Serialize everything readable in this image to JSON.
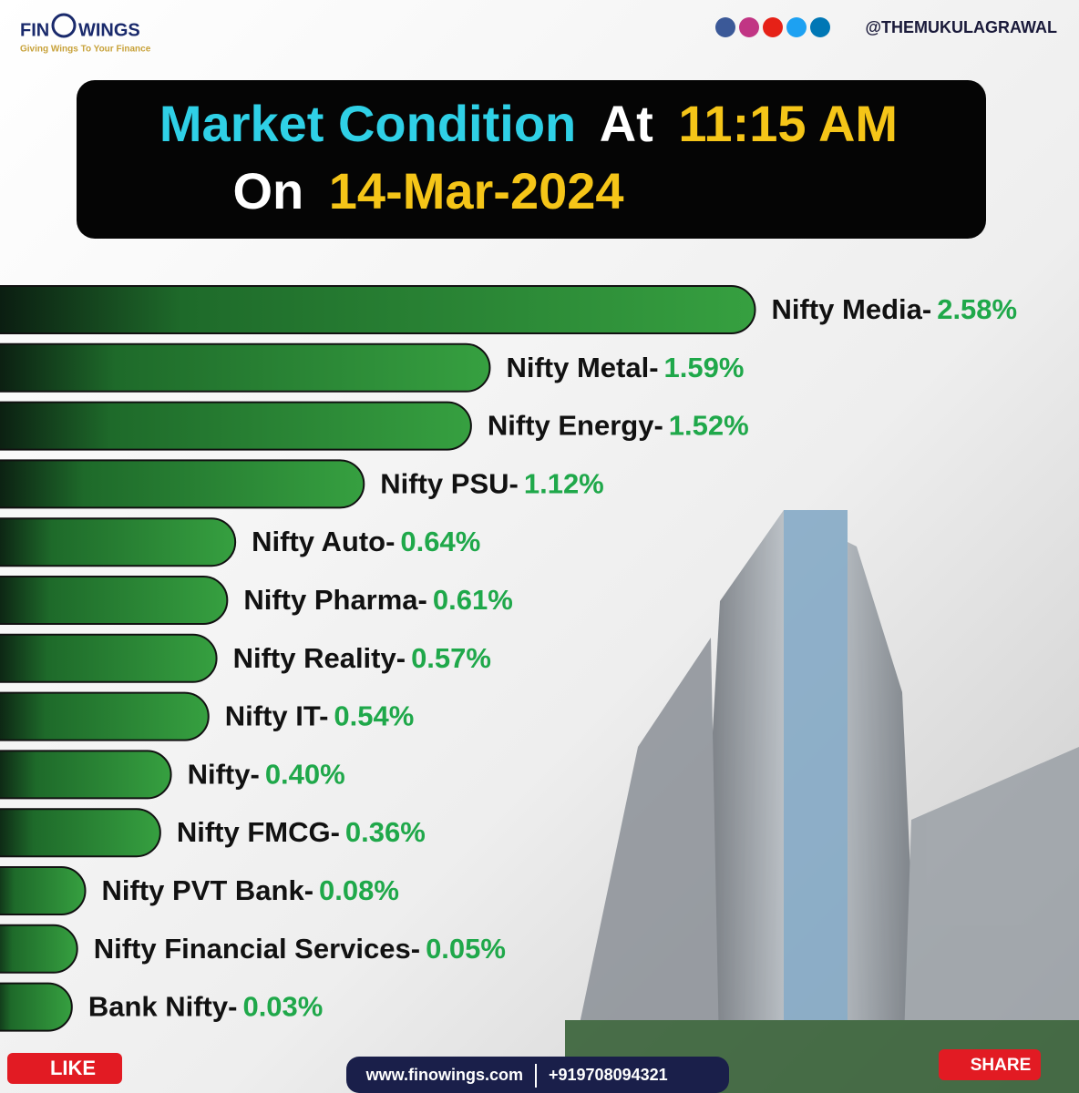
{
  "brand": {
    "logo_left": "FIN",
    "logo_right": "WINGS",
    "tagline": "Giving Wings To Your Finance",
    "handle": "@THEMUKULAGRAWAL"
  },
  "chart_data": {
    "type": "bar",
    "title": {
      "part1": "Market Condition",
      "part2": "At",
      "part3": "11:15 AM",
      "part4": "On",
      "part5": "14-Mar-2024"
    },
    "categories": [
      "Nifty Media-",
      "Nifty Metal-",
      "Nifty Energy-",
      "Nifty PSU-",
      "Nifty Auto-",
      "Nifty Pharma-",
      "Nifty Reality-",
      "Nifty IT-",
      "Nifty-",
      "Nifty FMCG-",
      "Nifty PVT Bank-",
      "Nifty Financial Services-",
      "Bank Nifty-"
    ],
    "values": [
      2.58,
      1.59,
      1.52,
      1.12,
      0.64,
      0.61,
      0.57,
      0.54,
      0.4,
      0.36,
      0.08,
      0.05,
      0.03
    ],
    "value_labels": [
      "2.58%",
      "1.59%",
      "1.52%",
      "1.12%",
      "0.64%",
      "0.61%",
      "0.57%",
      "0.54%",
      "0.40%",
      "0.36%",
      "0.08%",
      "0.05%",
      "0.03%"
    ],
    "color": "#2f9a3a",
    "label_value_color": "#1fa84a"
  },
  "footer": {
    "like": "LIKE",
    "website": "www.finowings.com",
    "phone": "+919708094321",
    "share": "SHARE"
  }
}
